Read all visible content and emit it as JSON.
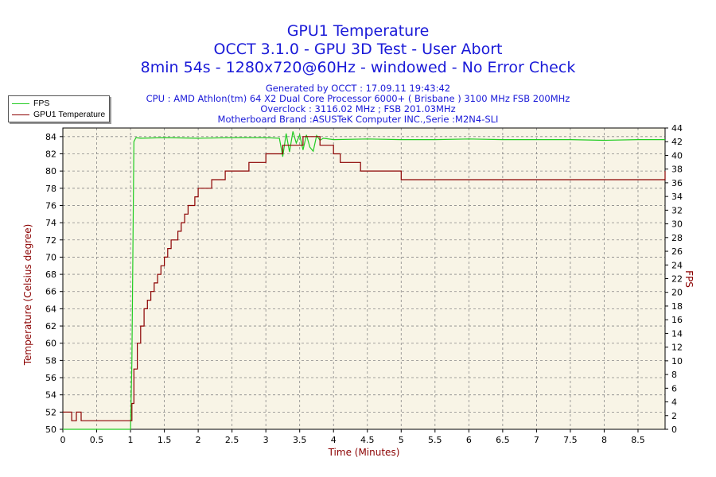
{
  "titles": {
    "line1": "GPU1 Temperature",
    "line2": "OCCT 3.1.0 - GPU 3D Test - User Abort",
    "line3": "8min 54s - 1280x720@60Hz - windowed - No Error Check"
  },
  "info": {
    "generated": "Generated by OCCT : 17.09.11 19:43:42",
    "cpu": "CPU : AMD Athlon(tm) 64 X2 Dual Core Processor 6000+ ( Brisbane ) 3100 MHz FSB 200MHz",
    "overclock": "Overclock : 3116.02 MHz ; FSB 201.03MHz",
    "motherboard": "Motherboard Brand :ASUSTeK Computer INC.,Serie :M2N4-SLI"
  },
  "colors": {
    "fps": "#22cc22",
    "temperature": "#8b0000",
    "plot_bg": "#f8f4e6",
    "grid": "#888888",
    "axis_label_left": "#8b0000",
    "axis_label_right": "#8b0000"
  },
  "chart_data": {
    "type": "line",
    "xlabel": "Time (Minutes)",
    "ylabel": "Temperature (Celsius degree)",
    "y2label": "FPS",
    "xlim": [
      0,
      8.9
    ],
    "ylim": [
      50,
      85
    ],
    "y2lim": [
      0,
      44
    ],
    "x_ticks": [
      "0",
      "0.5",
      "1",
      "1.5",
      "2",
      "2.5",
      "3",
      "3.5",
      "4",
      "4.5",
      "5",
      "5.5",
      "6",
      "6.5",
      "7",
      "7.5",
      "8",
      "8.5"
    ],
    "y_ticks": [
      "50",
      "52",
      "54",
      "56",
      "58",
      "60",
      "62",
      "64",
      "66",
      "68",
      "70",
      "72",
      "74",
      "76",
      "78",
      "80",
      "82",
      "84"
    ],
    "y2_ticks": [
      "0",
      "2",
      "4",
      "6",
      "8",
      "10",
      "12",
      "14",
      "16",
      "18",
      "20",
      "22",
      "24",
      "26",
      "28",
      "30",
      "32",
      "34",
      "36",
      "38",
      "40",
      "42",
      "44"
    ],
    "grid": true,
    "legend_position": "top-left",
    "series": [
      {
        "name": "FPS",
        "axis": "right",
        "x": [
          0.0,
          1.0,
          1.02,
          1.05,
          1.08,
          1.15,
          1.5,
          2.0,
          2.5,
          3.0,
          3.2,
          3.25,
          3.3,
          3.35,
          3.4,
          3.45,
          3.5,
          3.55,
          3.6,
          3.65,
          3.7,
          3.75,
          3.8,
          3.85,
          4.0,
          4.5,
          5.0,
          5.5,
          6.0,
          6.5,
          7.0,
          7.5,
          8.0,
          8.5,
          8.9
        ],
        "values": [
          0,
          0,
          10,
          42,
          42.6,
          42.5,
          42.6,
          42.5,
          42.6,
          42.6,
          42.5,
          39.8,
          43.2,
          40.5,
          43.5,
          41.8,
          43.0,
          40.8,
          43.0,
          41.2,
          40.6,
          42.9,
          42.2,
          42.5,
          42.3,
          42.4,
          42.3,
          42.3,
          42.4,
          42.3,
          42.3,
          42.3,
          42.2,
          42.3,
          42.3
        ]
      },
      {
        "name": "GPU1 Temperature",
        "axis": "left",
        "x": [
          0.0,
          0.1,
          0.13,
          0.17,
          0.2,
          0.23,
          0.27,
          0.3,
          1.0,
          1.02,
          1.05,
          1.1,
          1.15,
          1.2,
          1.25,
          1.3,
          1.35,
          1.4,
          1.45,
          1.5,
          1.55,
          1.6,
          1.65,
          1.7,
          1.75,
          1.8,
          1.85,
          1.9,
          1.95,
          2.0,
          2.1,
          2.2,
          2.3,
          2.4,
          2.5,
          2.6,
          2.75,
          2.9,
          3.0,
          3.1,
          3.25,
          3.4,
          3.5,
          3.55,
          3.7,
          3.8,
          3.9,
          4.0,
          4.1,
          4.3,
          4.4,
          4.5,
          4.9,
          5.0,
          8.85,
          8.9
        ],
        "values": [
          52,
          52,
          51,
          51,
          52,
          52,
          51,
          51,
          51,
          53,
          57,
          60,
          62,
          64,
          65,
          66,
          67,
          68,
          69,
          70,
          71,
          72,
          72,
          73,
          74,
          75,
          76,
          76,
          77,
          78,
          78,
          79,
          79,
          80,
          80,
          80,
          81,
          81,
          82,
          82,
          83,
          83,
          83,
          84,
          84,
          83,
          83,
          82,
          81,
          81,
          80,
          80,
          80,
          79,
          79,
          80
        ]
      }
    ]
  }
}
